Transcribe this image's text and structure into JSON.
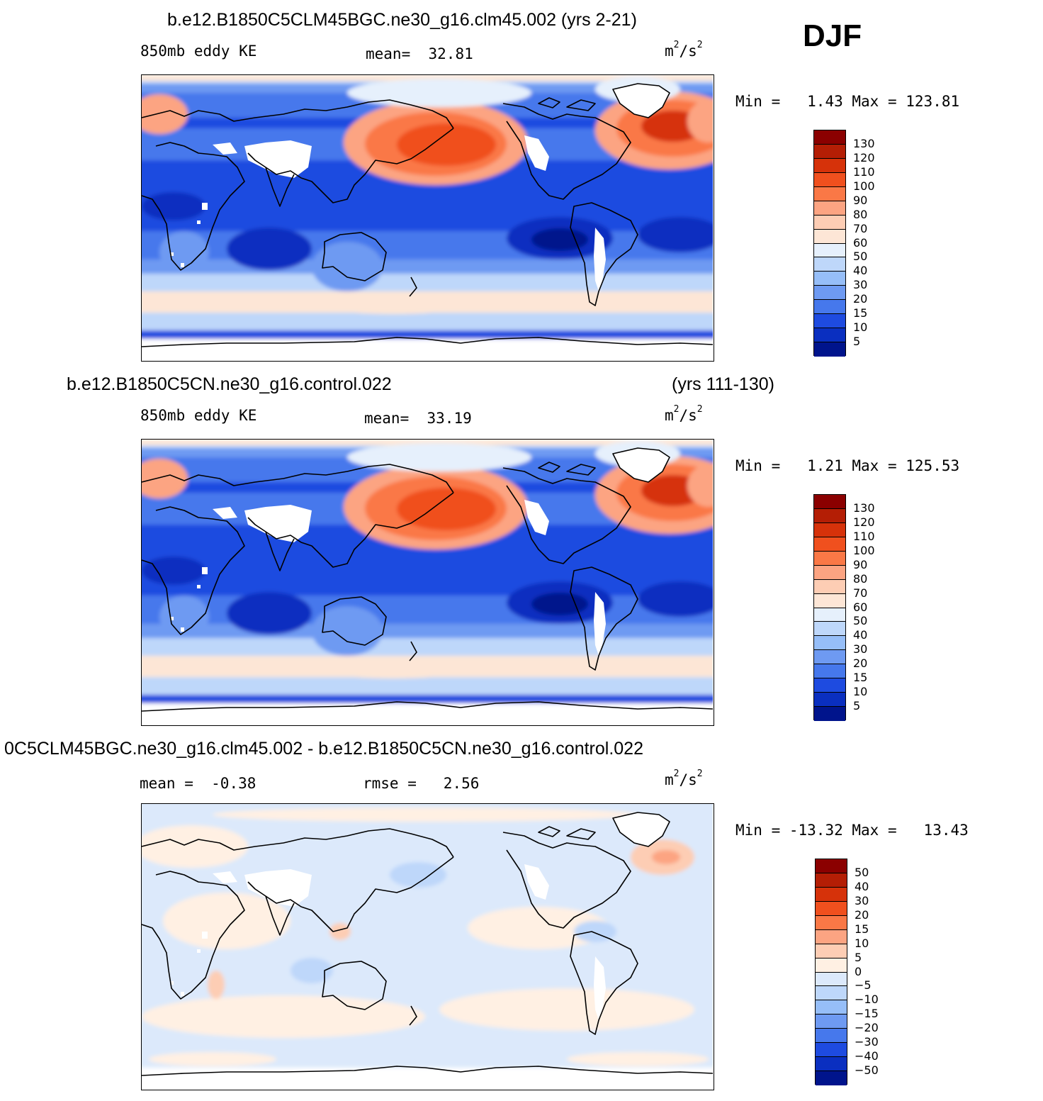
{
  "season": "DJF",
  "panels": [
    {
      "id": "p1",
      "title_left": "b.e12.B1850C5CLM45BGC.ne30_g16.clm45.002 (yrs 2-21)",
      "title_right": "",
      "variable": "850mb eddy KE",
      "stat1_label": "mean=",
      "stat1_value": "32.81",
      "stat2_label": "",
      "stat2_value": "",
      "units_base": "m",
      "units_exp1": "2",
      "units_mid": "/s",
      "units_exp2": "2",
      "min_label": "Min =",
      "min_value": "1.43",
      "max_label": "Max =",
      "max_value": "123.81",
      "colorbar": {
        "labels": [
          "130",
          "120",
          "110",
          "100",
          "90",
          "80",
          "70",
          "60",
          "50",
          "40",
          "30",
          "20",
          "15",
          "10",
          "5"
        ],
        "colors": [
          "#8b0000",
          "#b41e05",
          "#d6320a",
          "#f0501e",
          "#fa7846",
          "#fca482",
          "#fdcdb4",
          "#fde6d6",
          "#e6f0fc",
          "#bed7fa",
          "#96bef8",
          "#6e9af2",
          "#4678ec",
          "#1e4be0",
          "#0a2fc0",
          "#00148c"
        ]
      },
      "field": "mean"
    },
    {
      "id": "p2",
      "title_left": "b.e12.B1850C5CN.ne30_g16.control.022",
      "title_right": "(yrs 111-130)",
      "variable": "850mb eddy KE",
      "stat1_label": "mean=",
      "stat1_value": "33.19",
      "stat2_label": "",
      "stat2_value": "",
      "units_base": "m",
      "units_exp1": "2",
      "units_mid": "/s",
      "units_exp2": "2",
      "min_label": "Min =",
      "min_value": "1.21",
      "max_label": "Max =",
      "max_value": "125.53",
      "colorbar": {
        "labels": [
          "130",
          "120",
          "110",
          "100",
          "90",
          "80",
          "70",
          "60",
          "50",
          "40",
          "30",
          "20",
          "15",
          "10",
          "5"
        ],
        "colors": [
          "#8b0000",
          "#b41e05",
          "#d6320a",
          "#f0501e",
          "#fa7846",
          "#fca482",
          "#fdcdb4",
          "#fde6d6",
          "#e6f0fc",
          "#bed7fa",
          "#96bef8",
          "#6e9af2",
          "#4678ec",
          "#1e4be0",
          "#0a2fc0",
          "#00148c"
        ]
      },
      "field": "mean"
    },
    {
      "id": "p3",
      "title_left": "0C5CLM45BGC.ne30_g16.clm45.002 - b.e12.B1850C5CN.ne30_g16.control.022",
      "title_right": "",
      "variable": "",
      "stat1_label": "mean =",
      "stat1_value": "-0.38",
      "stat2_label": "rmse =",
      "stat2_value": "2.56",
      "units_base": "m",
      "units_exp1": "2",
      "units_mid": "/s",
      "units_exp2": "2",
      "min_label": "Min =",
      "min_value": "-13.32",
      "max_label": "Max =",
      "max_value": "13.43",
      "colorbar": {
        "labels": [
          "50",
          "40",
          "30",
          "20",
          "15",
          "10",
          "5",
          "0",
          "-5",
          "-10",
          "-15",
          "-20",
          "-30",
          "-40",
          "-50"
        ],
        "colors": [
          "#8b0000",
          "#b41e05",
          "#d6320a",
          "#f0501e",
          "#fa7846",
          "#fca482",
          "#fdcdb4",
          "#fff0e3",
          "#dce9fb",
          "#bed7fa",
          "#96bef8",
          "#6e9af2",
          "#4678ec",
          "#1e4be0",
          "#0a2fc0",
          "#00148c"
        ]
      },
      "field": "diff"
    }
  ]
}
